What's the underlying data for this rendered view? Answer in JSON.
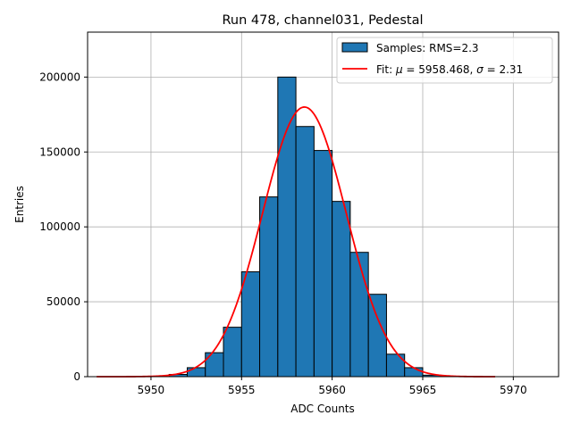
{
  "chart_data": {
    "type": "bar",
    "title": "Run 478, channel031, Pedestal",
    "xlabel": "ADC Counts",
    "ylabel": "Entries",
    "xlim": [
      5946.5,
      5972.5
    ],
    "ylim": [
      0,
      230000
    ],
    "xticks": [
      5950,
      5955,
      5960,
      5965,
      5970
    ],
    "yticks": [
      0,
      50000,
      100000,
      150000,
      200000
    ],
    "grid": true,
    "legend_position": "top-right",
    "bin_width": 1,
    "bins": [
      {
        "x": 5951.5,
        "count": 1500
      },
      {
        "x": 5952.5,
        "count": 6000
      },
      {
        "x": 5953.5,
        "count": 16000
      },
      {
        "x": 5954.5,
        "count": 33000
      },
      {
        "x": 5955.5,
        "count": 70000
      },
      {
        "x": 5956.5,
        "count": 120000
      },
      {
        "x": 5957.5,
        "count": 200000
      },
      {
        "x": 5958.5,
        "count": 167000
      },
      {
        "x": 5959.5,
        "count": 151000
      },
      {
        "x": 5960.5,
        "count": 117000
      },
      {
        "x": 5961.5,
        "count": 83000
      },
      {
        "x": 5962.5,
        "count": 55000
      },
      {
        "x": 5963.5,
        "count": 15000
      },
      {
        "x": 5964.5,
        "count": 6000
      },
      {
        "x": 5965.5,
        "count": 1000
      }
    ],
    "fit": {
      "mu": 5958.468,
      "sigma": 2.31,
      "peak": 180000,
      "x_range": [
        5947,
        5969
      ]
    },
    "series": [
      {
        "name": "Samples: RMS=2.3",
        "type": "histogram",
        "color": "#1f77b4"
      },
      {
        "name_prefix": "Fit: ",
        "mu_value": "5958.468",
        "sigma_value": "2.31",
        "type": "line",
        "color": "#ff0000"
      }
    ]
  }
}
